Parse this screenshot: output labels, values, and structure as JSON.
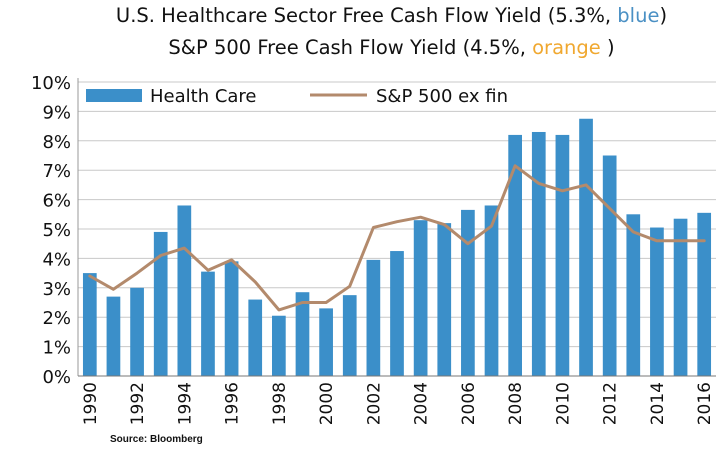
{
  "titles": {
    "line1": {
      "prefix": "U.S. Healthcare Sector Free Cash Flow Yield (5.3%, ",
      "highlight": "blue",
      "suffix": ")",
      "highlight_color": "#4a90c4"
    },
    "line2": {
      "prefix": "S&P 500 Free Cash Flow Yield (4.5%, ",
      "highlight": "orange",
      "suffix": " )",
      "highlight_color": "#f0a830"
    }
  },
  "source": "Source: Bloomberg",
  "colors": {
    "bar": "#3b8fc9",
    "line": "#b38a6c",
    "grid": "#c8c8c8"
  },
  "chart_data": {
    "type": "bar",
    "x": [
      1990,
      1991,
      1992,
      1993,
      1994,
      1995,
      1996,
      1997,
      1998,
      1999,
      2000,
      2001,
      2002,
      2003,
      2004,
      2005,
      2006,
      2007,
      2008,
      2009,
      2010,
      2011,
      2012,
      2013,
      2014,
      2015,
      2016
    ],
    "x_tick_labels": [
      "1990",
      "1992",
      "1994",
      "1996",
      "1998",
      "2000",
      "2002",
      "2004",
      "2006",
      "2008",
      "2010",
      "2012",
      "2014",
      "2016"
    ],
    "series": [
      {
        "name": "Health Care",
        "type": "bar",
        "values": [
          3.5,
          2.7,
          3.0,
          4.9,
          5.8,
          3.55,
          3.9,
          2.6,
          2.05,
          2.85,
          2.3,
          2.75,
          3.95,
          4.25,
          5.3,
          5.2,
          5.65,
          5.8,
          8.2,
          8.3,
          8.2,
          8.75,
          7.5,
          5.5,
          5.05,
          5.35,
          5.55
        ]
      },
      {
        "name": "S&P 500 ex fin",
        "type": "line",
        "values": [
          3.4,
          2.95,
          3.5,
          4.1,
          4.35,
          3.6,
          3.95,
          3.2,
          2.25,
          2.5,
          2.5,
          3.05,
          5.05,
          5.25,
          5.4,
          5.15,
          4.5,
          5.1,
          7.15,
          6.55,
          6.3,
          6.5,
          5.7,
          4.9,
          4.6,
          4.6,
          4.6
        ]
      }
    ],
    "y_tick_labels": [
      "0%",
      "1%",
      "2%",
      "3%",
      "4%",
      "5%",
      "6%",
      "7%",
      "8%",
      "9%",
      "10%"
    ],
    "ylim": [
      0,
      10
    ],
    "grid": "horizontal",
    "legend_position": "top-left"
  }
}
